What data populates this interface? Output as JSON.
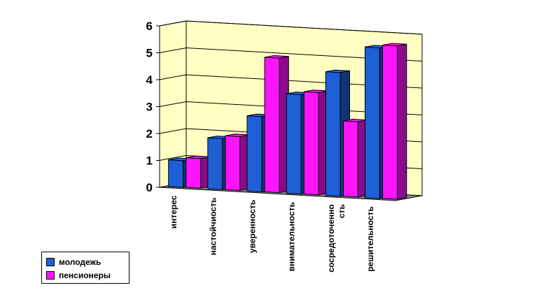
{
  "chart_data": {
    "type": "bar",
    "three_d": true,
    "categories": [
      "интерес",
      "настойчиость",
      "уверенность",
      "внимательность",
      "сосредоточенно сть",
      "решительность"
    ],
    "series": [
      {
        "name": "молодежь",
        "values": [
          1.0,
          1.9,
          2.8,
          3.7,
          4.6,
          5.6
        ],
        "color": "#1f5fd6"
      },
      {
        "name": "пенсионеры",
        "values": [
          1.1,
          2.0,
          5.0,
          3.8,
          2.8,
          5.7
        ],
        "color": "#ff14ff"
      }
    ],
    "yticks": [
      "0",
      "1",
      "2",
      "3",
      "4",
      "5",
      "6"
    ],
    "ylim": [
      0,
      6
    ],
    "grid": true,
    "wall_color": "#ffffc4",
    "floor_color": "#8a8a8a",
    "legend_position": "bottom-left"
  },
  "legend": {
    "items": [
      {
        "label": "молодежь",
        "color": "#1f5fd6"
      },
      {
        "label": "пенсионеры",
        "color": "#ff14ff"
      }
    ]
  }
}
